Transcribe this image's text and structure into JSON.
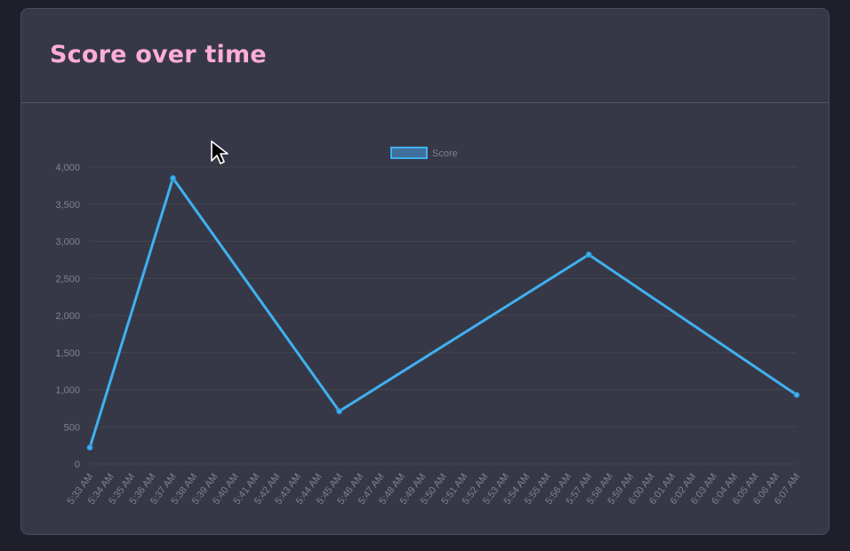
{
  "card": {
    "title": "Score over time"
  },
  "colors": {
    "page_bg": "#1f1f2b",
    "card_bg": "#373847",
    "title": "#ffadd8",
    "series_line": "#3fb1f0",
    "legend_fill": "#3f6f9c",
    "tick_text": "#7f8090",
    "grid": "#44454f"
  },
  "chart_data": {
    "type": "line",
    "legend": [
      "Score"
    ],
    "legend_position": "top-center",
    "grid": true,
    "ylim": [
      0,
      4000
    ],
    "yticks": [
      0,
      500,
      1000,
      1500,
      2000,
      2500,
      3000,
      3500,
      4000
    ],
    "ytick_labels": [
      "0",
      "500",
      "1,000",
      "1,500",
      "2,000",
      "2,500",
      "3,000",
      "3,500",
      "4,000"
    ],
    "x": [
      "5:33 AM",
      "5:34 AM",
      "5:35 AM",
      "5:36 AM",
      "5:37 AM",
      "5:38 AM",
      "5:39 AM",
      "5:40 AM",
      "5:41 AM",
      "5:42 AM",
      "5:43 AM",
      "5:44 AM",
      "5:45 AM",
      "5:46 AM",
      "5:47 AM",
      "5:48 AM",
      "5:49 AM",
      "5:50 AM",
      "5:51 AM",
      "5:52 AM",
      "5:53 AM",
      "5:54 AM",
      "5:55 AM",
      "5:56 AM",
      "5:57 AM",
      "5:58 AM",
      "5:59 AM",
      "6:00 AM",
      "6:01 AM",
      "6:02 AM",
      "6:03 AM",
      "6:04 AM",
      "6:05 AM",
      "6:06 AM",
      "6:07 AM"
    ],
    "series": [
      {
        "name": "Score",
        "points": [
          {
            "x": "5:33 AM",
            "y": 220
          },
          {
            "x": "5:37 AM",
            "y": 3850
          },
          {
            "x": "5:45 AM",
            "y": 710
          },
          {
            "x": "5:57 AM",
            "y": 2820
          },
          {
            "x": "6:07 AM",
            "y": 930
          }
        ]
      }
    ]
  }
}
